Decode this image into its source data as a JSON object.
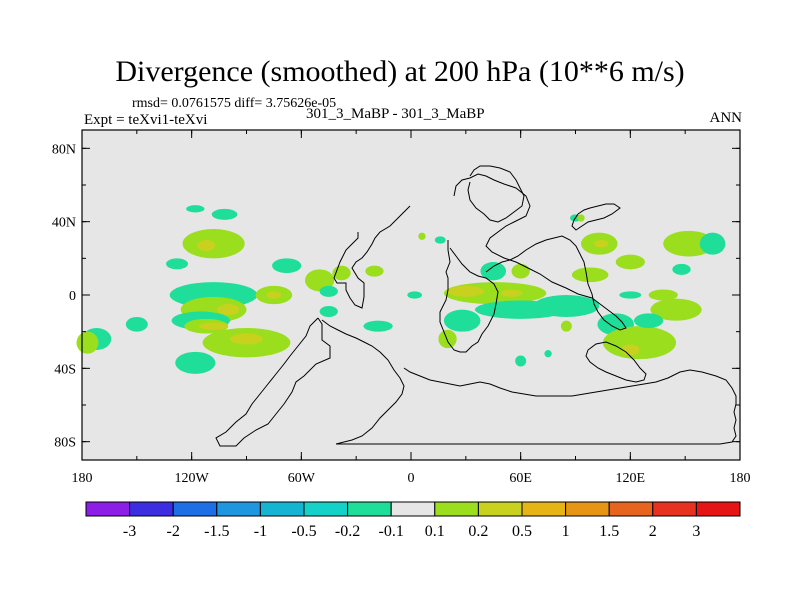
{
  "chart_data": {
    "type": "contour-map",
    "title": "Divergence (smoothed) at 200 hPa (10**6 m/s)",
    "stats_text": "rmsd= 0.0761575 diff= 3.75626e-05",
    "left_label": "Expt = teXvi1-teXvi",
    "center_label": "301_3_MaBP - 301_3_MaBP",
    "right_label": "ANN",
    "x_range": [
      -180,
      180
    ],
    "y_range": [
      -90,
      90
    ],
    "x_ticks": [
      {
        "value": -180,
        "label": "180"
      },
      {
        "value": -120,
        "label": "120W"
      },
      {
        "value": -60,
        "label": "60W"
      },
      {
        "value": 0,
        "label": "0"
      },
      {
        "value": 60,
        "label": "60E"
      },
      {
        "value": 120,
        "label": "120E"
      },
      {
        "value": 180,
        "label": "180"
      }
    ],
    "y_ticks": [
      {
        "value": 80,
        "label": "80N"
      },
      {
        "value": 40,
        "label": "40N"
      },
      {
        "value": 0,
        "label": "0"
      },
      {
        "value": -40,
        "label": "40S"
      },
      {
        "value": -80,
        "label": "80S"
      }
    ],
    "colorbar": {
      "boundaries": [
        "-3",
        "-2",
        "-1.5",
        "-1",
        "-0.5",
        "-0.2",
        "-0.1",
        "0.1",
        "0.2",
        "0.5",
        "1",
        "1.5",
        "2",
        "3"
      ],
      "colors": [
        "#8c1ee6",
        "#3c2ee0",
        "#1e6ee6",
        "#1e96e0",
        "#14b4d2",
        "#14d2c8",
        "#1ede9a",
        "#e6e6e6",
        "#9ade1e",
        "#c8d21e",
        "#e6b414",
        "#e69614",
        "#e6641e",
        "#e6321e",
        "#e61414"
      ]
    },
    "regions": [
      {
        "level": "0.1 to 0.2",
        "lon": 152,
        "lat": 28,
        "rx": 14,
        "ry": 7
      },
      {
        "level": "-0.2 to -0.1",
        "lon": 165,
        "lat": 28,
        "rx": 7,
        "ry": 6
      },
      {
        "level": "0.1 to 0.2",
        "lon": 145,
        "lat": -8,
        "rx": 14,
        "ry": 6
      },
      {
        "level": "-0.2 to -0.1",
        "lon": 148,
        "lat": 14,
        "rx": 5,
        "ry": 3
      },
      {
        "level": "0.1 to 0.2",
        "lon": -108,
        "lat": 28,
        "rx": 17,
        "ry": 8
      },
      {
        "level": "0.2 to 0.5",
        "lon": -112,
        "lat": 27,
        "rx": 5,
        "ry": 3
      },
      {
        "level": "-0.2 to -0.1",
        "lon": -128,
        "lat": 17,
        "rx": 6,
        "ry": 3
      },
      {
        "level": "-0.2 to -0.1",
        "lon": -102,
        "lat": 44,
        "rx": 7,
        "ry": 3
      },
      {
        "level": "-0.2 to -0.1",
        "lon": -118,
        "lat": 47,
        "rx": 5,
        "ry": 2
      },
      {
        "level": "-0.2 to -0.1",
        "lon": -68,
        "lat": 16,
        "rx": 8,
        "ry": 4
      },
      {
        "level": "-0.2 to -0.1",
        "lon": -108,
        "lat": 0,
        "rx": 24,
        "ry": 7
      },
      {
        "level": "0.1 to 0.2",
        "lon": -108,
        "lat": -8,
        "rx": 18,
        "ry": 7
      },
      {
        "level": "0.2 to 0.5",
        "lon": -100,
        "lat": -8,
        "rx": 6,
        "ry": 3
      },
      {
        "level": "-0.2 to -0.1",
        "lon": -115,
        "lat": -14,
        "rx": 16,
        "ry": 5
      },
      {
        "level": "0.1 to 0.2",
        "lon": -112,
        "lat": -17,
        "rx": 12,
        "ry": 4
      },
      {
        "level": "0.2 to 0.5",
        "lon": -108,
        "lat": -17,
        "rx": 8,
        "ry": 2
      },
      {
        "level": "0.1 to 0.2",
        "lon": -90,
        "lat": -26,
        "rx": 24,
        "ry": 8
      },
      {
        "level": "0.2 to 0.5",
        "lon": -90,
        "lat": -24,
        "rx": 9,
        "ry": 3
      },
      {
        "level": "-0.2 to -0.1",
        "lon": -150,
        "lat": -16,
        "rx": 6,
        "ry": 4
      },
      {
        "level": "-0.2 to -0.1",
        "lon": -172,
        "lat": -24,
        "rx": 8,
        "ry": 6
      },
      {
        "level": "0.1 to 0.2",
        "lon": -177,
        "lat": -26,
        "rx": 6,
        "ry": 6
      },
      {
        "level": "-0.2 to -0.1",
        "lon": -118,
        "lat": -37,
        "rx": 11,
        "ry": 6
      },
      {
        "level": "0.1 to 0.2",
        "lon": -75,
        "lat": 0,
        "rx": 10,
        "ry": 5
      },
      {
        "level": "0.2 to 0.5",
        "lon": -75,
        "lat": 0,
        "rx": 4,
        "ry": 2
      },
      {
        "level": "0.1 to 0.2",
        "lon": -50,
        "lat": 8,
        "rx": 8,
        "ry": 6
      },
      {
        "level": "-0.2 to -0.1",
        "lon": -45,
        "lat": 2,
        "rx": 5,
        "ry": 3
      },
      {
        "level": "-0.2 to -0.1",
        "lon": -45,
        "lat": -9,
        "rx": 5,
        "ry": 3
      },
      {
        "level": "0.1 to 0.2",
        "lon": -38,
        "lat": 12,
        "rx": 5,
        "ry": 4
      },
      {
        "level": "-0.2 to -0.1",
        "lon": -18,
        "lat": -17,
        "rx": 8,
        "ry": 3
      },
      {
        "level": "0.1 to 0.2",
        "lon": -20,
        "lat": 13,
        "rx": 5,
        "ry": 3
      },
      {
        "level": "-0.2 to -0.1",
        "lon": 2,
        "lat": 0,
        "rx": 4,
        "ry": 2
      },
      {
        "level": "0.1 to 0.2",
        "lon": 6,
        "lat": 32,
        "rx": 2,
        "ry": 2
      },
      {
        "level": "-0.2 to -0.1",
        "lon": 16,
        "lat": 30,
        "rx": 3,
        "ry": 2
      },
      {
        "level": "0.1 to 0.2",
        "lon": 46,
        "lat": 1,
        "rx": 28,
        "ry": 6
      },
      {
        "level": "0.2 to 0.5",
        "lon": 30,
        "lat": 2,
        "rx": 10,
        "ry": 3
      },
      {
        "level": "0.2 to 0.5",
        "lon": 55,
        "lat": 1,
        "rx": 6,
        "ry": 2
      },
      {
        "level": "-0.2 to -0.1",
        "lon": 45,
        "lat": 13,
        "rx": 7,
        "ry": 5
      },
      {
        "level": "-0.2 to -0.1",
        "lon": 60,
        "lat": -8,
        "rx": 25,
        "ry": 5
      },
      {
        "level": "-0.2 to -0.1",
        "lon": 85,
        "lat": -6,
        "rx": 18,
        "ry": 6
      },
      {
        "level": "-0.2 to -0.1",
        "lon": 28,
        "lat": -14,
        "rx": 10,
        "ry": 6
      },
      {
        "level": "0.1 to 0.2",
        "lon": 20,
        "lat": -24,
        "rx": 5,
        "ry": 5
      },
      {
        "level": "0.1 to 0.2",
        "lon": 60,
        "lat": 13,
        "rx": 5,
        "ry": 4
      },
      {
        "level": "0.1 to 0.2",
        "lon": 103,
        "lat": 28,
        "rx": 10,
        "ry": 6
      },
      {
        "level": "0.2 to 0.5",
        "lon": 104,
        "lat": 28,
        "rx": 4,
        "ry": 2
      },
      {
        "level": "0.1 to 0.2",
        "lon": 120,
        "lat": 18,
        "rx": 8,
        "ry": 4
      },
      {
        "level": "0.1 to 0.2",
        "lon": 98,
        "lat": 11,
        "rx": 10,
        "ry": 4
      },
      {
        "level": "-0.2 to -0.1",
        "lon": 90,
        "lat": 42,
        "rx": 3,
        "ry": 2
      },
      {
        "level": "0.1 to 0.2",
        "lon": 93,
        "lat": 42,
        "rx": 2,
        "ry": 2
      },
      {
        "level": "-0.2 to -0.1",
        "lon": 120,
        "lat": 0,
        "rx": 6,
        "ry": 2
      },
      {
        "level": "0.1 to 0.2",
        "lon": 138,
        "lat": 0,
        "rx": 8,
        "ry": 3
      },
      {
        "level": "-0.2 to -0.1",
        "lon": 112,
        "lat": -16,
        "rx": 10,
        "ry": 6
      },
      {
        "level": "0.1 to 0.2",
        "lon": 125,
        "lat": -26,
        "rx": 20,
        "ry": 9
      },
      {
        "level": "0.2 to 0.5",
        "lon": 120,
        "lat": -30,
        "rx": 5,
        "ry": 3
      },
      {
        "level": "-0.2 to -0.1",
        "lon": 130,
        "lat": -14,
        "rx": 8,
        "ry": 4
      },
      {
        "level": "-0.2 to -0.1",
        "lon": 60,
        "lat": -36,
        "rx": 3,
        "ry": 3
      },
      {
        "level": "-0.2 to -0.1",
        "lon": 75,
        "lat": -32,
        "rx": 2,
        "ry": 2
      },
      {
        "level": "0.1 to 0.2",
        "lon": 85,
        "lat": -17,
        "rx": 3,
        "ry": 3
      }
    ]
  }
}
